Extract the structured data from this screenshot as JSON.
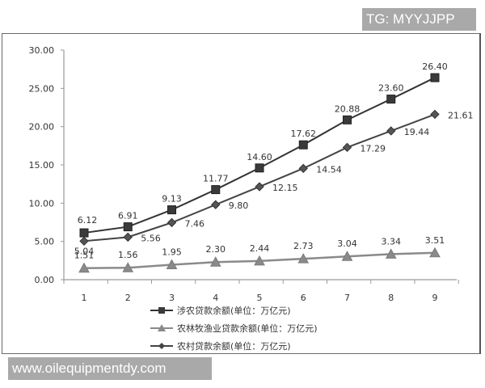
{
  "watermarks": {
    "top_right": "TG: MYYJJPP",
    "bottom_left": "www.oilequipmentdy.com"
  },
  "chart_data": {
    "type": "line",
    "title": "",
    "xlabel": "",
    "ylabel": "",
    "x": [
      1,
      2,
      3,
      4,
      5,
      6,
      7,
      8,
      9
    ],
    "ylim": [
      0,
      30
    ],
    "yticks": [
      "0.00",
      "5.00",
      "10.00",
      "15.00",
      "20.00",
      "25.00",
      "30.00"
    ],
    "grid": false,
    "legend_position": "bottom",
    "series": [
      {
        "name": "涉农贷款余额(单位：万亿元)",
        "marker": "square",
        "color": "#333333",
        "values": [
          6.12,
          6.91,
          9.13,
          11.77,
          14.6,
          17.62,
          20.88,
          23.6,
          26.4
        ],
        "labels": [
          "6.12",
          "6.91",
          "9.13",
          "11.77",
          "14.60",
          "17.62",
          "20.88",
          "23.60",
          "26.40"
        ]
      },
      {
        "name": "农林牧渔业贷款余额(单位：万亿元)",
        "marker": "triangle",
        "color": "#8a8a8a",
        "values": [
          1.51,
          1.56,
          1.95,
          2.3,
          2.44,
          2.73,
          3.04,
          3.34,
          3.51
        ],
        "labels": [
          "1.51",
          "1.56",
          "1.95",
          "2.30",
          "2.44",
          "2.73",
          "3.04",
          "3.34",
          "3.51"
        ]
      },
      {
        "name": "农村贷款余额(单位：万亿元)",
        "marker": "diamond",
        "color": "#444444",
        "values": [
          5.04,
          5.56,
          7.46,
          9.8,
          12.15,
          14.54,
          17.29,
          19.44,
          21.61
        ],
        "labels": [
          "5.04",
          "5.56",
          "7.46",
          "9.80",
          "12.15",
          "14.54",
          "17.29",
          "19.44",
          "21.61"
        ]
      }
    ]
  }
}
